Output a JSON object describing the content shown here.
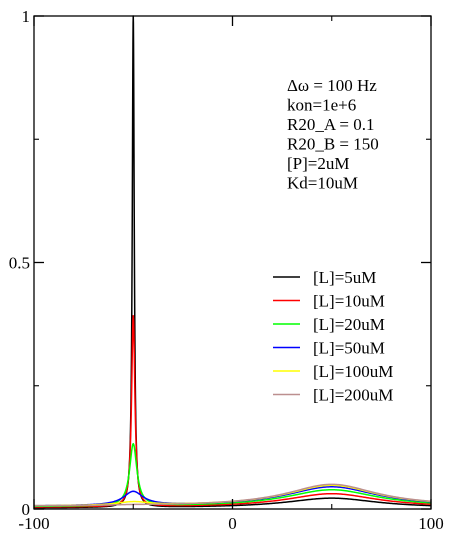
{
  "chart_data": {
    "type": "line",
    "title": "",
    "xlabel": "",
    "ylabel": "",
    "xlim": [
      -100,
      100
    ],
    "ylim": [
      0,
      1
    ],
    "x_ticks": [
      -100,
      0,
      100
    ],
    "y_ticks": [
      0,
      0.5,
      1
    ],
    "x_tick_labels": [
      "-100",
      "0",
      "100"
    ],
    "y_tick_labels": [
      "0",
      "0.5",
      "1"
    ],
    "grid": false,
    "legend_placement": "right",
    "annotations": [
      "Δω = 100 Hz",
      "kon=1e+6",
      "R20_A = 0.1",
      "R20_B = 150",
      "[P]=2uM",
      "Kd=10uM"
    ],
    "series_shape": "each series is a Lorentzian line at x = -50 plus a broad Lorentzian line at x = 50; values are read off the plot",
    "series": [
      {
        "name": "[L]=5uM",
        "color": "#000000",
        "peak_a_height": 1.0,
        "peak_a_center": -50,
        "peak_a_hwhm": 0.6,
        "peak_b_height": 0.02,
        "peak_b_center": 50,
        "peak_b_hwhm": 28,
        "baseline": 0.002
      },
      {
        "name": "[L]=10uM",
        "color": "#ff0000",
        "peak_a_height": 0.39,
        "peak_a_center": -50,
        "peak_a_hwhm": 1.0,
        "peak_b_height": 0.028,
        "peak_b_center": 50,
        "peak_b_hwhm": 28,
        "baseline": 0.003
      },
      {
        "name": "[L]=20uM",
        "color": "#00ff00",
        "peak_a_height": 0.13,
        "peak_a_center": -50,
        "peak_a_hwhm": 2.2,
        "peak_b_height": 0.035,
        "peak_b_center": 50,
        "peak_b_hwhm": 28,
        "baseline": 0.004
      },
      {
        "name": "[L]=50uM",
        "color": "#0000ff",
        "peak_a_height": 0.033,
        "peak_a_center": -50,
        "peak_a_hwhm": 6.0,
        "peak_b_height": 0.04,
        "peak_b_center": 50,
        "peak_b_hwhm": 28,
        "baseline": 0.005
      },
      {
        "name": "[L]=100uM",
        "color": "#ffff00",
        "peak_a_height": 0.012,
        "peak_a_center": -50,
        "peak_a_hwhm": 10,
        "peak_b_height": 0.043,
        "peak_b_center": 50,
        "peak_b_hwhm": 28,
        "baseline": 0.005
      },
      {
        "name": "[L]=200uM",
        "color": "#bc8f8f",
        "peak_a_height": 0.006,
        "peak_a_center": -50,
        "peak_a_hwhm": 14,
        "peak_b_height": 0.045,
        "peak_b_center": 50,
        "peak_b_hwhm": 28,
        "baseline": 0.005
      }
    ]
  }
}
